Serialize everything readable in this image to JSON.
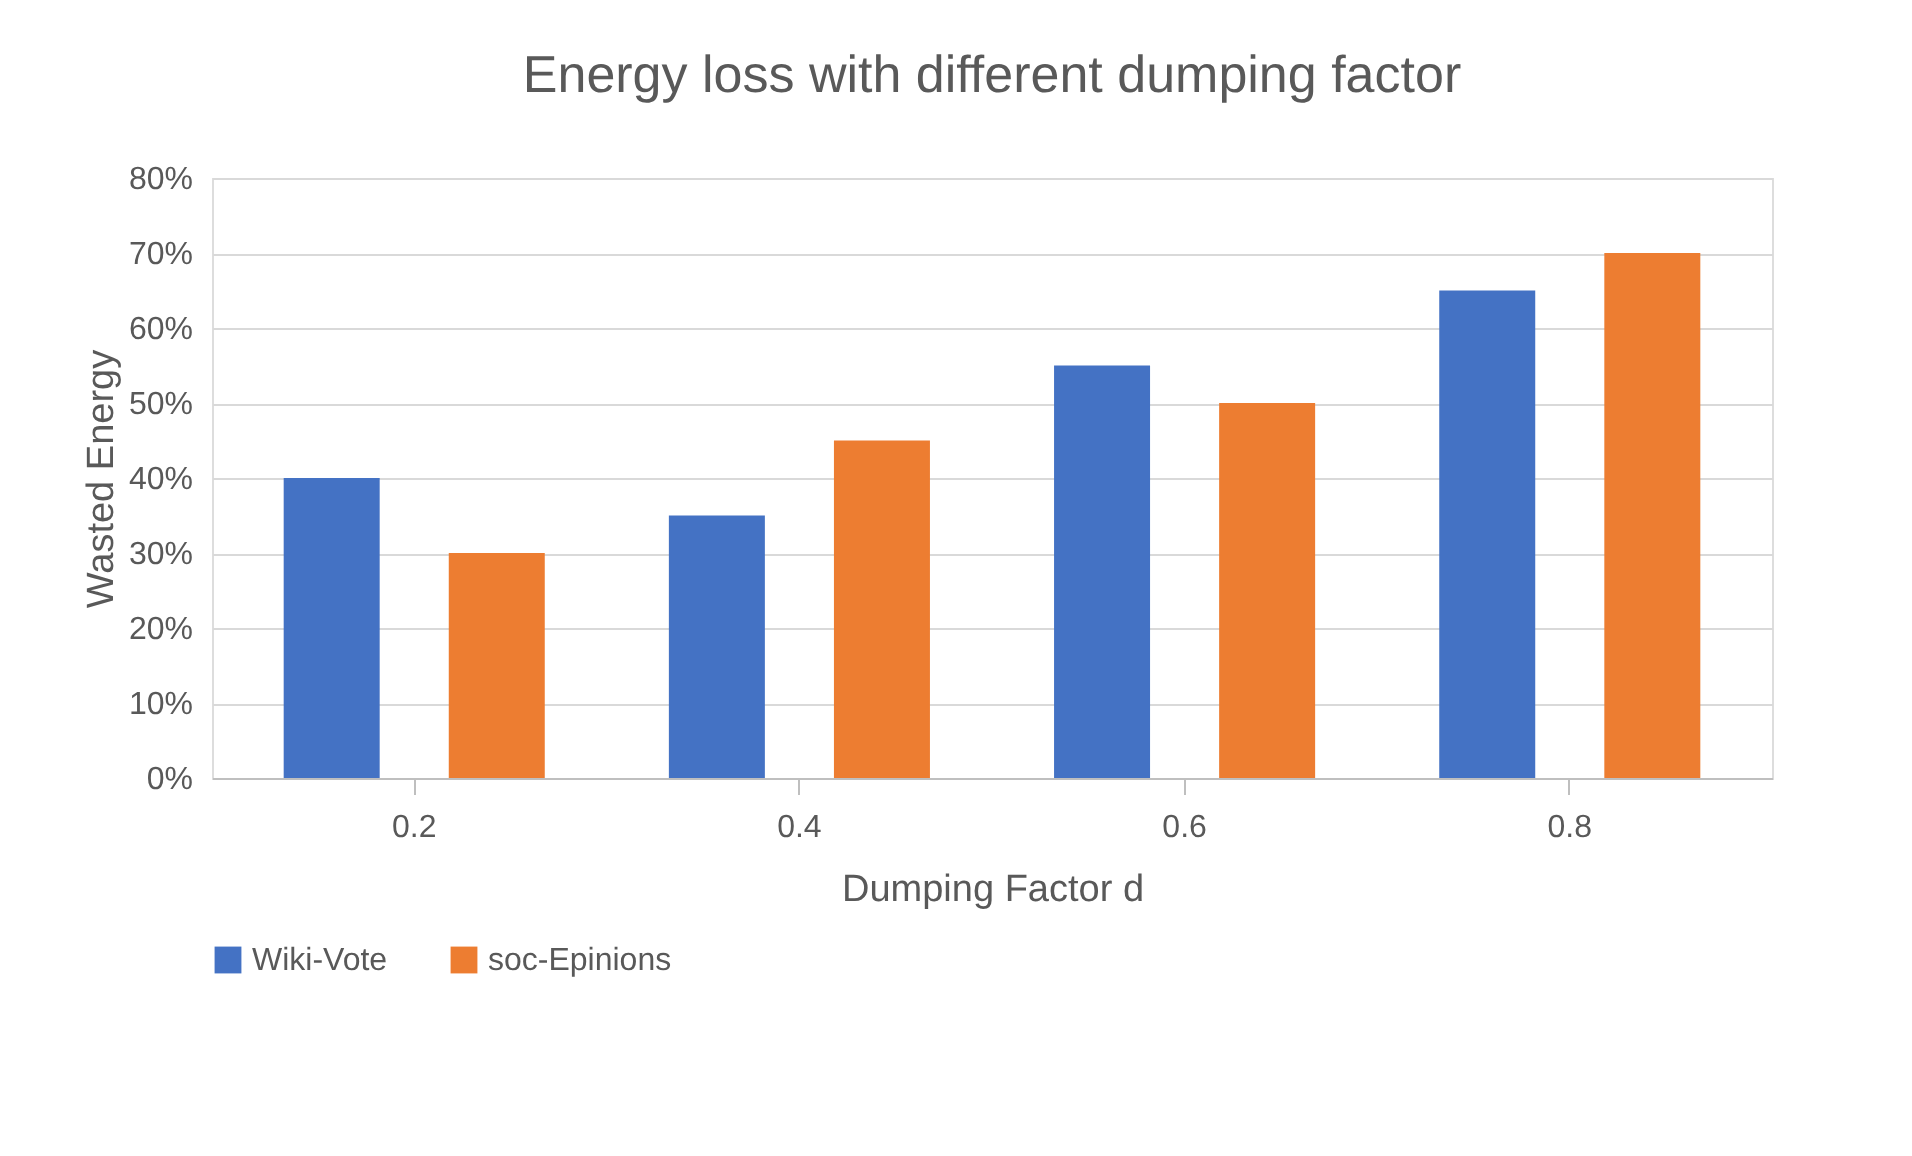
{
  "chart_data": {
    "type": "bar",
    "title": "Energy loss with different dumping factor",
    "xlabel": "Dumping Factor d",
    "ylabel": "Wasted Energy",
    "categories": [
      "0.2",
      "0.4",
      "0.6",
      "0.8"
    ],
    "series": [
      {
        "name": "Wiki-Vote",
        "color": "#4472c4",
        "values": [
          40,
          35,
          55,
          65
        ]
      },
      {
        "name": "soc-Epinions",
        "color": "#ed7d31",
        "values": [
          30,
          45,
          50,
          70
        ]
      }
    ],
    "ylim": [
      0,
      80
    ],
    "yticks": [
      {
        "value": 0,
        "label": "0%"
      },
      {
        "value": 10,
        "label": "10%"
      },
      {
        "value": 20,
        "label": "20%"
      },
      {
        "value": 30,
        "label": "30%"
      },
      {
        "value": 40,
        "label": "40%"
      },
      {
        "value": 50,
        "label": "50%"
      },
      {
        "value": 60,
        "label": "60%"
      },
      {
        "value": 70,
        "label": "70%"
      },
      {
        "value": 80,
        "label": "80%"
      }
    ],
    "grid": "y",
    "legend": "bottom"
  }
}
